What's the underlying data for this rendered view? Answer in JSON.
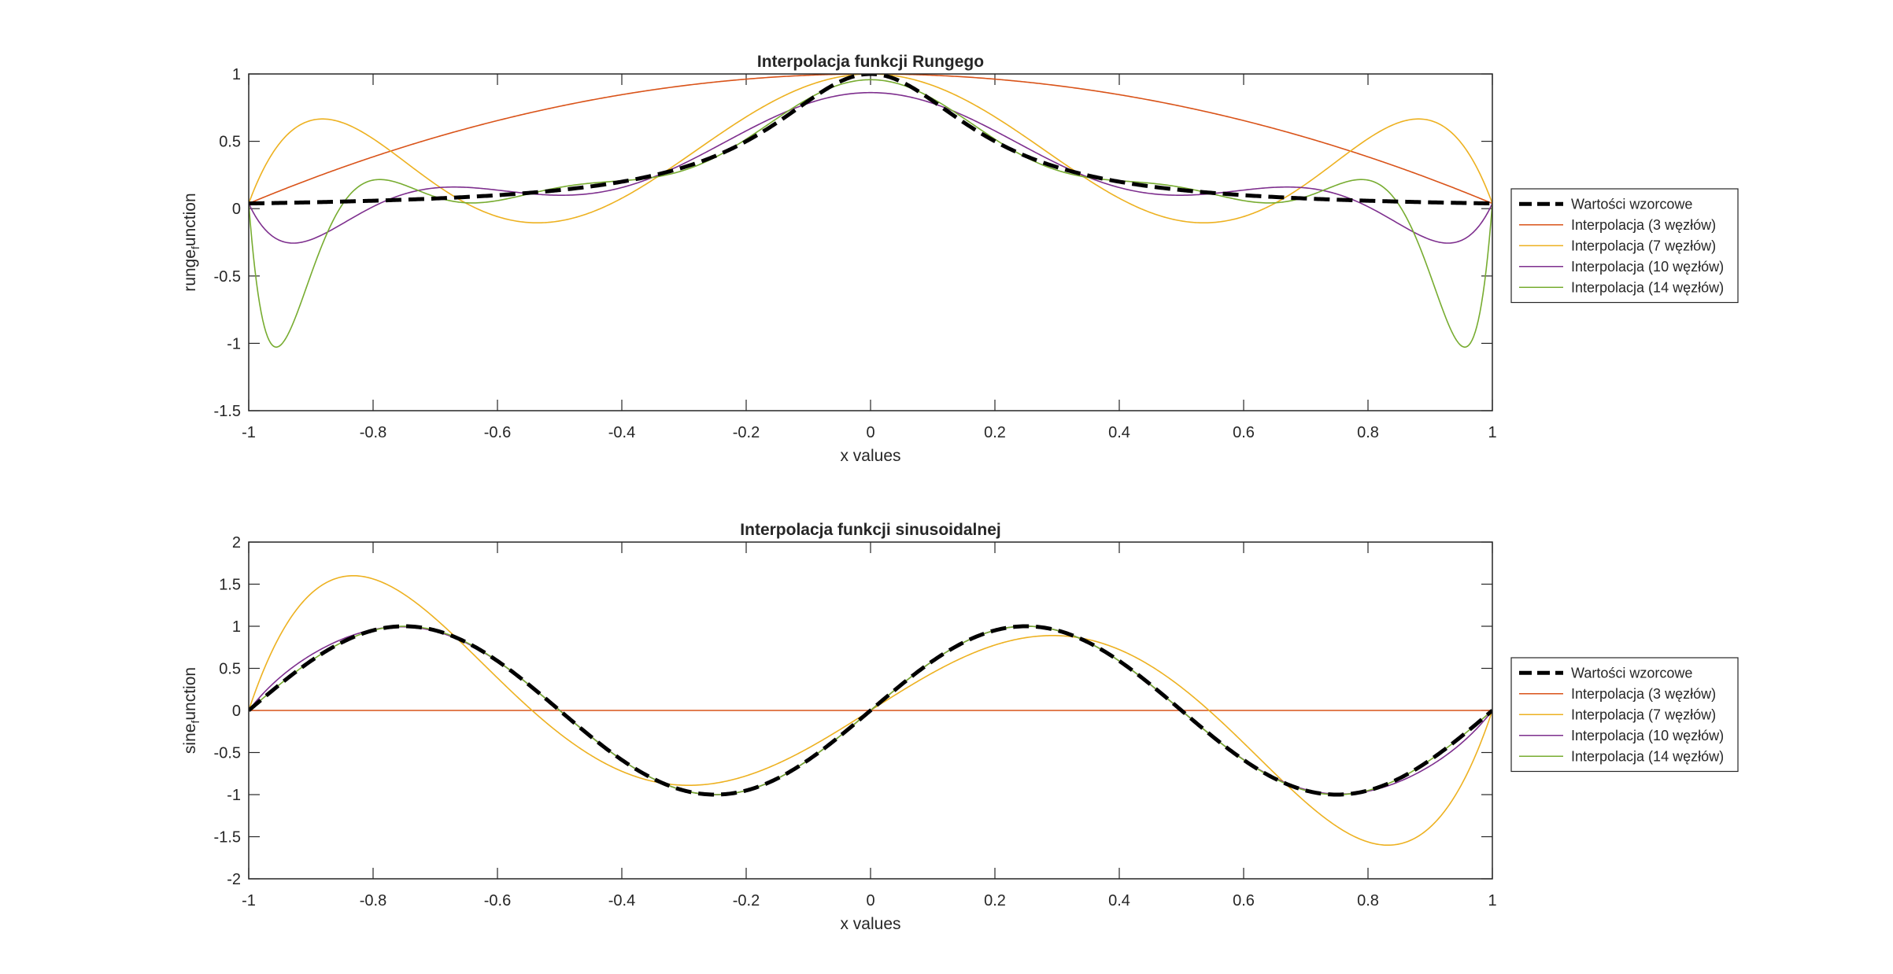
{
  "chart_data": [
    {
      "type": "line",
      "title": "Interpolacja funkcji Rungego",
      "xlabel": "x values",
      "ylabel_base": "runge",
      "ylabel_sub": "f",
      "ylabel_rest": "unction",
      "xlim": [
        -1,
        1
      ],
      "ylim": [
        -1.5,
        1
      ],
      "xticks": [
        -1,
        -0.8,
        -0.6,
        -0.4,
        -0.2,
        0,
        0.2,
        0.4,
        0.6,
        0.8,
        1
      ],
      "xtick_labels": [
        "-1",
        "-0.8",
        "-0.6",
        "-0.4",
        "-0.2",
        "0",
        "0.2",
        "0.4",
        "0.6",
        "0.8",
        "1"
      ],
      "yticks": [
        -1.5,
        -1,
        -0.5,
        0,
        0.5,
        1
      ],
      "ytick_labels": [
        "-1.5",
        "-1",
        "-0.5",
        "0",
        "0.5",
        "1"
      ],
      "grid": false,
      "legend_position": "right",
      "legend": [
        "Wartości wzorcowe",
        "Interpolacja (3 węzłów)",
        "Interpolacja (7 węzłów)",
        "Interpolacja (10 węzłów)",
        "Interpolacja (14 węzłów)"
      ],
      "function": "runge",
      "series": [
        {
          "name": "Wartości wzorcowe",
          "nodes": 0,
          "color": "#000000",
          "dashed": true
        },
        {
          "name": "Interpolacja (3 węzłów)",
          "nodes": 3,
          "color": "#D95319",
          "dashed": false
        },
        {
          "name": "Interpolacja (7 węzłów)",
          "nodes": 7,
          "color": "#EDB120",
          "dashed": false
        },
        {
          "name": "Interpolacja (10 węzłów)",
          "nodes": 10,
          "color": "#7E2F8E",
          "dashed": false
        },
        {
          "name": "Interpolacja (14 węzłów)",
          "nodes": 14,
          "color": "#77AC30",
          "dashed": false
        }
      ]
    },
    {
      "type": "line",
      "title": "Interpolacja funkcji sinusoidalnej",
      "xlabel": "x values",
      "ylabel_base": "sine",
      "ylabel_sub": "f",
      "ylabel_rest": "unction",
      "xlim": [
        -1,
        1
      ],
      "ylim": [
        -2,
        2
      ],
      "xticks": [
        -1,
        -0.8,
        -0.6,
        -0.4,
        -0.2,
        0,
        0.2,
        0.4,
        0.6,
        0.8,
        1
      ],
      "xtick_labels": [
        "-1",
        "-0.8",
        "-0.6",
        "-0.4",
        "-0.2",
        "0",
        "0.2",
        "0.4",
        "0.6",
        "0.8",
        "1"
      ],
      "yticks": [
        -2,
        -1.5,
        -1,
        -0.5,
        0,
        0.5,
        1,
        1.5,
        2
      ],
      "ytick_labels": [
        "-2",
        "-1.5",
        "-1",
        "-0.5",
        "0",
        "0.5",
        "1",
        "1.5",
        "2"
      ],
      "grid": false,
      "legend_position": "right",
      "legend": [
        "Wartości wzorcowe",
        "Interpolacja (3 węzłów)",
        "Interpolacja (7 węzłów)",
        "Interpolacja (10 węzłów)",
        "Interpolacja (14 węzłów)"
      ],
      "function": "sine",
      "series": [
        {
          "name": "Wartości wzorcowe",
          "nodes": 0,
          "color": "#000000",
          "dashed": true
        },
        {
          "name": "Interpolacja (3 węzłów)",
          "nodes": 3,
          "color": "#D95319",
          "dashed": false
        },
        {
          "name": "Interpolacja (7 węzłów)",
          "nodes": 7,
          "color": "#EDB120",
          "dashed": false
        },
        {
          "name": "Interpolacja (10 węzłów)",
          "nodes": 10,
          "color": "#7E2F8E",
          "dashed": false
        },
        {
          "name": "Interpolacja (14 węzłów)",
          "nodes": 14,
          "color": "#77AC30",
          "dashed": false
        }
      ]
    }
  ]
}
